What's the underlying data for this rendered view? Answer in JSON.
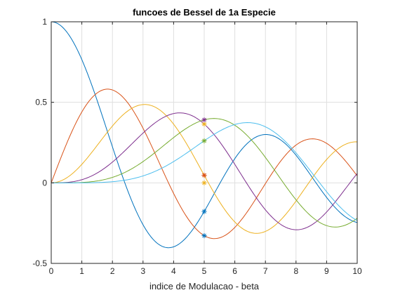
{
  "chart_data": {
    "type": "line",
    "title": "funcoes de Bessel de 1a Especie",
    "xlabel": "indice de Modulacao - beta",
    "ylabel": "",
    "xlim": [
      0,
      10
    ],
    "ylim": [
      -0.5,
      1
    ],
    "x_ticks": [
      "0",
      "1",
      "2",
      "3",
      "4",
      "5",
      "6",
      "7",
      "8",
      "9",
      "10"
    ],
    "y_ticks": [
      "-0.5",
      "0",
      "0.5",
      "1"
    ],
    "grid": true,
    "series": [
      {
        "order": 0,
        "color": "#0072BD"
      },
      {
        "order": 1,
        "color": "#D95319"
      },
      {
        "order": 2,
        "color": "#EDB120"
      },
      {
        "order": 3,
        "color": "#7E2F8E"
      },
      {
        "order": 4,
        "color": "#77AC30"
      },
      {
        "order": 5,
        "color": "#4DBEEE"
      }
    ],
    "markers": {
      "x": 5,
      "symbol": "*",
      "points": [
        {
          "y": -0.178,
          "color": "#0072BD"
        },
        {
          "y": -0.328,
          "color": "#0072BD"
        },
        {
          "y": 0.047,
          "color": "#D95319"
        },
        {
          "y": 0.365,
          "color": "#EDB120"
        },
        {
          "y": 0.391,
          "color": "#7E2F8E"
        },
        {
          "y": 0.261,
          "color": "#77AC30"
        },
        {
          "y": 0.0,
          "color": "#EDB120"
        },
        {
          "y": 0.047,
          "color": "#D95319"
        }
      ]
    }
  }
}
